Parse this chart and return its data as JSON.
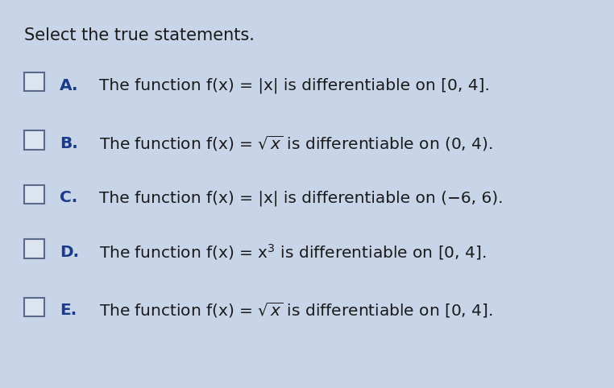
{
  "title": "Select the true statements.",
  "background_color": "#c8d4e8",
  "text_color": "#1a1a1a",
  "label_color": "#1a3a8a",
  "title_fontsize": 15,
  "item_fontsize": 14.5,
  "label_fontsize": 14.5,
  "items": [
    {
      "label": "A.",
      "text_parts": [
        {
          "text": "The function f(x) = |x| is differentiable on [0, 4].",
          "style": "normal"
        }
      ]
    },
    {
      "label": "B.",
      "text_parts": [
        {
          "text": "The function f(x) = √x is differentiable on (0, 4).",
          "style": "normal"
        }
      ]
    },
    {
      "label": "C.",
      "text_parts": [
        {
          "text": "The function f(x) = |x| is differentiable on (−6, 6).",
          "style": "normal"
        }
      ]
    },
    {
      "label": "D.",
      "text_parts": [
        {
          "text": "The function f(x) = x³ is differentiable on [0, 4].",
          "style": "normal"
        }
      ]
    },
    {
      "label": "E.",
      "text_parts": [
        {
          "text": "The function f(x) = √x is differentiable on [0, 4].",
          "style": "normal"
        }
      ]
    }
  ],
  "checkbox_size": 0.022,
  "checkbox_color": "#5a6a8a",
  "checkbox_fill": "#dce4f0"
}
